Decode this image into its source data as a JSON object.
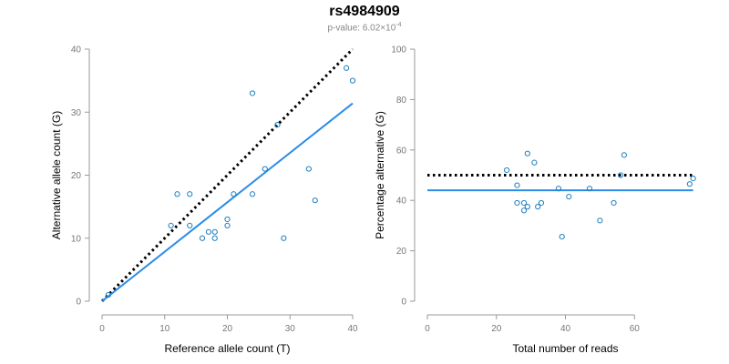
{
  "figure": {
    "title": "rs4984909",
    "subtitle_prefix": "p-value: 6.02×10",
    "subtitle_exponent": "-4"
  },
  "colors": {
    "points": "#1f7fbf",
    "fit_line": "#2a8be8",
    "reference_line": "#000000",
    "axis": "#999999",
    "tick_text": "#777777"
  },
  "chart_data": [
    {
      "type": "scatter",
      "xlabel": "Reference allele count (T)",
      "ylabel": "Alternative allele count (G)",
      "xlim": [
        0,
        40
      ],
      "ylim": [
        0,
        40
      ],
      "xticks": [
        0,
        10,
        20,
        30,
        40
      ],
      "yticks": [
        0,
        10,
        20,
        30,
        40
      ],
      "grid": false,
      "points": [
        {
          "x": 1,
          "y": 1
        },
        {
          "x": 11,
          "y": 12
        },
        {
          "x": 12,
          "y": 17
        },
        {
          "x": 14,
          "y": 12
        },
        {
          "x": 14,
          "y": 17
        },
        {
          "x": 16,
          "y": 10
        },
        {
          "x": 17,
          "y": 11
        },
        {
          "x": 18,
          "y": 10
        },
        {
          "x": 18,
          "y": 11
        },
        {
          "x": 20,
          "y": 12
        },
        {
          "x": 20,
          "y": 13
        },
        {
          "x": 21,
          "y": 17
        },
        {
          "x": 24,
          "y": 17
        },
        {
          "x": 24,
          "y": 33
        },
        {
          "x": 26,
          "y": 21
        },
        {
          "x": 28,
          "y": 28
        },
        {
          "x": 29,
          "y": 10
        },
        {
          "x": 33,
          "y": 21
        },
        {
          "x": 34,
          "y": 16
        },
        {
          "x": 39,
          "y": 37
        },
        {
          "x": 40,
          "y": 35
        }
      ],
      "fit_line": {
        "x": [
          0,
          40
        ],
        "y": [
          0,
          31.4
        ]
      },
      "reference_line": {
        "x": [
          0,
          40
        ],
        "y": [
          0,
          40
        ]
      }
    },
    {
      "type": "scatter",
      "xlabel": "Total number of reads",
      "ylabel": "Percentage alternative (G)",
      "xlim": [
        0,
        80
      ],
      "ylim": [
        0,
        100
      ],
      "xticks": [
        0,
        20,
        40,
        60
      ],
      "yticks": [
        0,
        20,
        40,
        60,
        80,
        100
      ],
      "grid": false,
      "points": [
        {
          "x": 23,
          "y": 52
        },
        {
          "x": 26,
          "y": 46
        },
        {
          "x": 26,
          "y": 39
        },
        {
          "x": 28,
          "y": 39
        },
        {
          "x": 28,
          "y": 36
        },
        {
          "x": 29,
          "y": 58.6
        },
        {
          "x": 29,
          "y": 37.5
        },
        {
          "x": 31,
          "y": 55
        },
        {
          "x": 32,
          "y": 37.5
        },
        {
          "x": 33,
          "y": 39
        },
        {
          "x": 38,
          "y": 44.7
        },
        {
          "x": 39,
          "y": 25.6
        },
        {
          "x": 41,
          "y": 41.5
        },
        {
          "x": 47,
          "y": 44.7
        },
        {
          "x": 50,
          "y": 32
        },
        {
          "x": 54,
          "y": 39
        },
        {
          "x": 56,
          "y": 50
        },
        {
          "x": 57,
          "y": 58
        },
        {
          "x": 76,
          "y": 46.5
        },
        {
          "x": 77,
          "y": 48.7
        }
      ],
      "fit_line": {
        "x": [
          0,
          77
        ],
        "y": [
          44,
          44
        ]
      },
      "reference_line": {
        "x": [
          0,
          77
        ],
        "y": [
          50,
          50
        ]
      }
    }
  ]
}
